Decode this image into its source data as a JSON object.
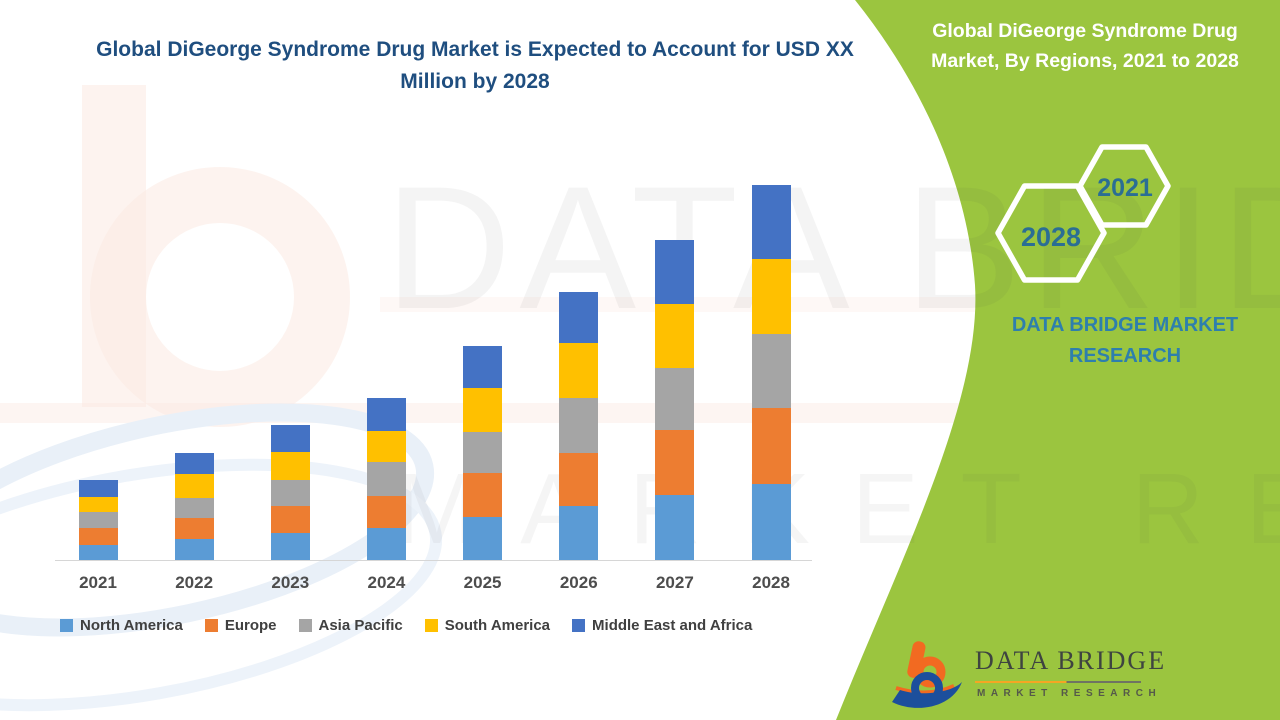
{
  "main_title": "Global DiGeorge Syndrome Drug Market is Expected to Account for USD XX Million by 2028",
  "side_panel": {
    "title": "Global DiGeorge Syndrome Drug Market, By Regions, 2021 to 2028",
    "hexagons": [
      {
        "label": "2028"
      },
      {
        "label": "2021"
      }
    ],
    "brand_line1": "DATA BRIDGE MARKET",
    "brand_line2": "RESEARCH"
  },
  "footer_logo": {
    "name": "DATA BRIDGE",
    "subtitle": "MARKET RESEARCH"
  },
  "watermark": {
    "line1": "DATA BRIDGE",
    "line2": "MARKET RESEARCH"
  },
  "colors": {
    "panel_green": "#9BC53F",
    "title_blue": "#1F4E7F",
    "hexagon_text_blue": "#2B6E94",
    "brand_text_blue": "#2E7FAD",
    "axis_label_gray": "#4D4D4D",
    "legend_text_gray": "#404040",
    "logo_orange": "#F26A21",
    "logo_blue": "#1C4F9C"
  },
  "chart_data": {
    "type": "bar",
    "stacked": true,
    "title": "Global DiGeorge Syndrome Drug Market is Expected to Account for USD XX Million by 2028",
    "xlabel": "",
    "ylabel": "",
    "y_axis_visible": false,
    "grid": false,
    "legend_position": "bottom",
    "value_note": "Y axis unlabeled in source (USD XX Million); values are relative estimates read from bar heights",
    "categories": [
      "2021",
      "2022",
      "2023",
      "2024",
      "2025",
      "2026",
      "2027",
      "2028"
    ],
    "series": [
      {
        "name": "North America",
        "color": "#5B9BD5",
        "values": [
          15,
          21,
          27,
          32,
          43,
          54,
          65,
          76
        ]
      },
      {
        "name": "Europe",
        "color": "#ED7D31",
        "values": [
          17,
          21,
          27,
          32,
          44,
          53,
          65,
          76
        ]
      },
      {
        "name": "Asia Pacific",
        "color": "#A5A5A5",
        "values": [
          16,
          20,
          26,
          34,
          41,
          55,
          62,
          74
        ]
      },
      {
        "name": "South America",
        "color": "#FFC000",
        "values": [
          15,
          24,
          28,
          31,
          44,
          55,
          64,
          75
        ]
      },
      {
        "name": "Middle East and Africa",
        "color": "#4472C4",
        "values": [
          17,
          21,
          27,
          33,
          42,
          51,
          64,
          74
        ]
      }
    ]
  }
}
